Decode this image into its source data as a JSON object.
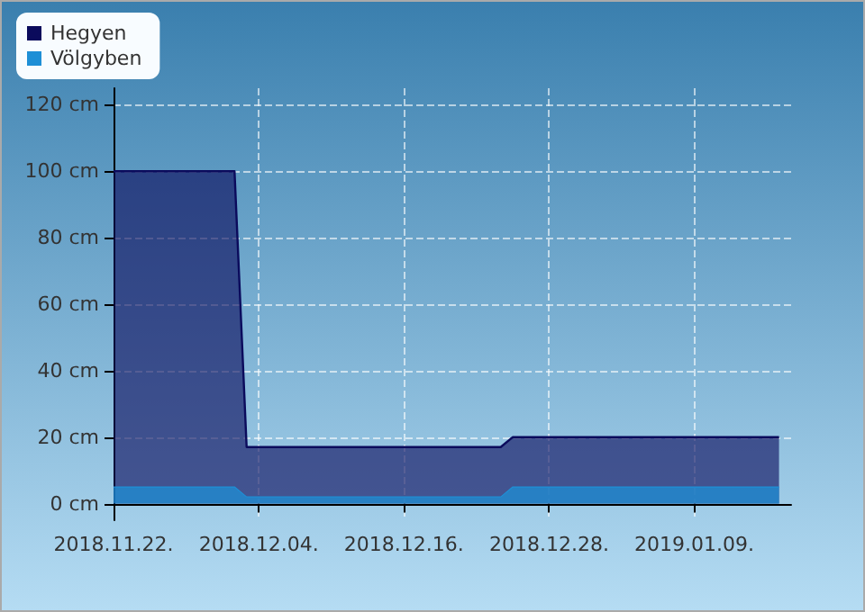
{
  "chart_data": {
    "type": "area",
    "x": [
      "2018-11-22",
      "2018-12-02",
      "2018-12-03",
      "2018-12-24",
      "2018-12-25",
      "2019-01-16"
    ],
    "series": [
      {
        "name": "Hegyen",
        "color": "#0b0b5c",
        "values": [
          100,
          100,
          17,
          17,
          20,
          20
        ]
      },
      {
        "name": "Völgyben",
        "color": "#1e8fd6",
        "values": [
          5,
          5,
          2,
          2,
          5,
          5
        ]
      }
    ],
    "xlim": [
      "2018-11-22",
      "2019-01-17"
    ],
    "xticks": [
      {
        "value": "2018-11-22",
        "label": "2018.11.22."
      },
      {
        "value": "2018-12-04",
        "label": "2018.12.04."
      },
      {
        "value": "2018-12-16",
        "label": "2018.12.16."
      },
      {
        "value": "2018-12-28",
        "label": "2018.12.28."
      },
      {
        "value": "2019-01-09",
        "label": "2019.01.09."
      }
    ],
    "ylim": [
      -5,
      125
    ],
    "yticks": [
      {
        "value": 0,
        "label": "0 cm"
      },
      {
        "value": 20,
        "label": "20 cm"
      },
      {
        "value": 40,
        "label": "40 cm"
      },
      {
        "value": 60,
        "label": "60 cm"
      },
      {
        "value": 80,
        "label": "80 cm"
      },
      {
        "value": 100,
        "label": "100 cm"
      },
      {
        "value": 120,
        "label": "120 cm"
      }
    ],
    "grid": true,
    "legend": "top left",
    "marker": "none",
    "line_style": "solid"
  }
}
